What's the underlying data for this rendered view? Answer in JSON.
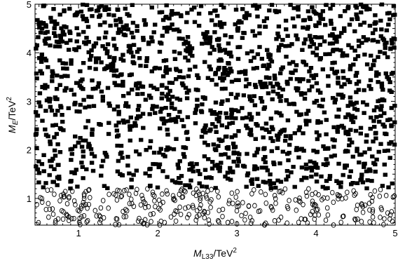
{
  "chart_data": {
    "type": "scatter",
    "title": "",
    "xlabel": {
      "symbol": "M",
      "subscript": "L33",
      "unit": "/TeV",
      "power": "2"
    },
    "ylabel": {
      "symbol": "M",
      "subscript": "E",
      "unit": "/TeV",
      "power": "2"
    },
    "xlim": [
      0.45,
      5.0
    ],
    "ylim": [
      0.45,
      5.0
    ],
    "x_ticks": [
      1,
      2,
      3,
      4,
      5
    ],
    "y_ticks": [
      1,
      2,
      3,
      4,
      5
    ],
    "x_tick_labels": [
      "1",
      "2",
      "3",
      "4",
      "5"
    ],
    "y_tick_labels": [
      "1",
      "2",
      "3",
      "4",
      "5"
    ],
    "grid": false,
    "legend": "none",
    "series": [
      {
        "marker": "filled-square",
        "color": "#000000",
        "region": {
          "x": [
            0.45,
            5.0
          ],
          "y": [
            1.2,
            5.0
          ]
        },
        "count": 1500
      },
      {
        "marker": "open-circle",
        "color": "#000000",
        "region": {
          "x": [
            0.45,
            5.0
          ],
          "y": [
            0.45,
            1.2
          ]
        },
        "count": 330
      }
    ]
  }
}
